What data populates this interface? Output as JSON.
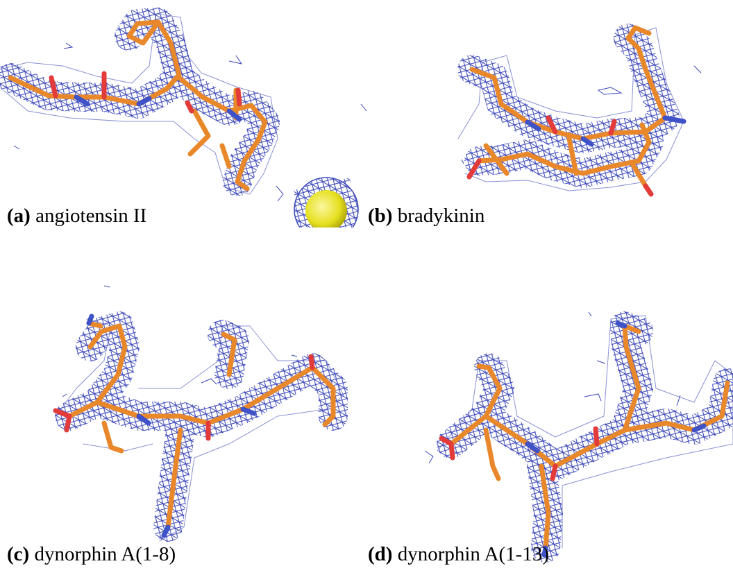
{
  "panels": [
    {
      "letter": "(a)",
      "name": "angiotensin II"
    },
    {
      "letter": "(b)",
      "name": "bradykinin"
    },
    {
      "letter": "(c)",
      "name": "dynorphin A(1-8)"
    },
    {
      "letter": "(d)",
      "name": "dynorphin A(1-13)"
    }
  ]
}
